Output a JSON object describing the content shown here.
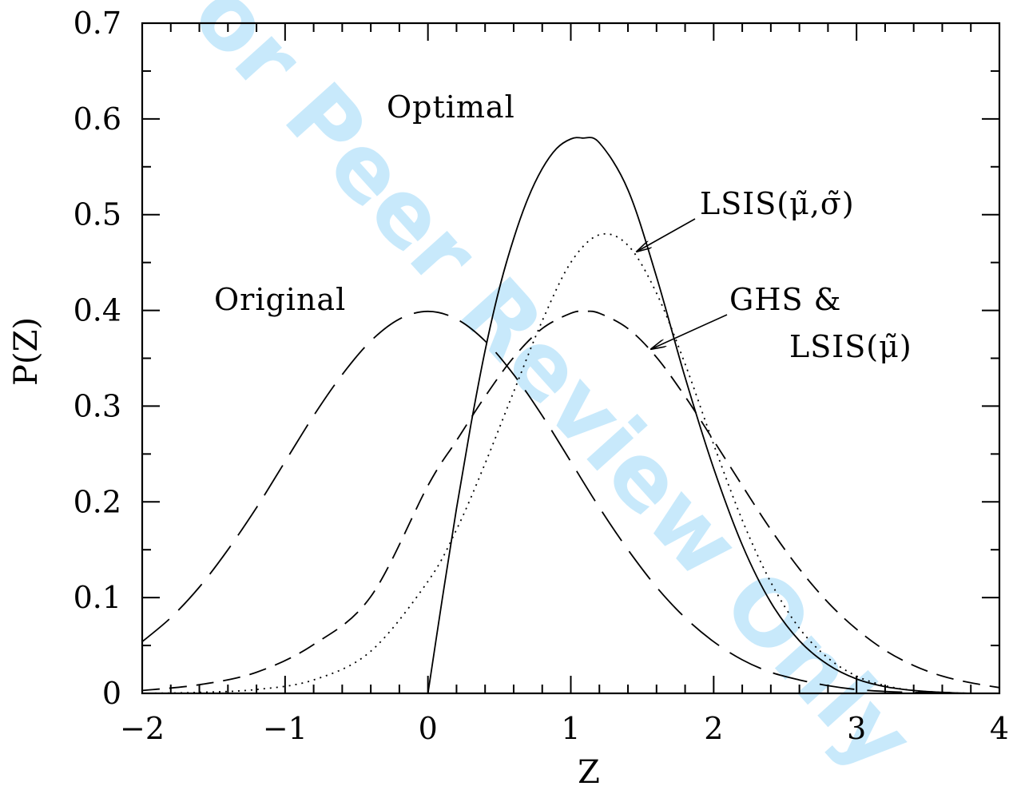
{
  "watermark": "For Peer Review Only",
  "chart_data": {
    "type": "line",
    "xlabel": "Z",
    "ylabel": "P(Z)",
    "xlim": [
      -2,
      4
    ],
    "ylim": [
      0,
      0.7
    ],
    "x_ticks": [
      -2,
      -1,
      0,
      1,
      2,
      3,
      4
    ],
    "x_tick_labels": [
      "−2",
      "−1",
      "0",
      "1",
      "2",
      "3",
      "4"
    ],
    "y_ticks": [
      0,
      0.1,
      0.2,
      0.3,
      0.4,
      0.5,
      0.6,
      0.7
    ],
    "y_tick_labels": [
      "0",
      "0.1",
      "0.2",
      "0.3",
      "0.4",
      "0.5",
      "0.6",
      "0.7"
    ],
    "grid": false,
    "legend": "none",
    "annotations": [
      {
        "text": "Original"
      },
      {
        "text": "Optimal"
      },
      {
        "text": "LSIS(μ̃,σ̃)",
        "arrow_to": [
          1.48,
          0.46
        ]
      },
      {
        "text": "GHS &"
      },
      {
        "text": "LSIS(μ̃)",
        "arrow_to": [
          1.55,
          0.355
        ]
      }
    ],
    "series": [
      {
        "style": "long-dash",
        "x": [
          -2.0,
          -1.8,
          -1.6,
          -1.4,
          -1.2,
          -1.0,
          -0.8,
          -0.6,
          -0.4,
          -0.2,
          0.0,
          0.2,
          0.4,
          0.6,
          0.8,
          1.0,
          1.2,
          1.4,
          1.6,
          1.8,
          2.0,
          2.2,
          2.4,
          2.6,
          2.8,
          3.0,
          3.2,
          3.4,
          3.6,
          3.8,
          4.0
        ],
        "y": [
          0.054,
          0.079,
          0.111,
          0.15,
          0.194,
          0.242,
          0.29,
          0.333,
          0.368,
          0.391,
          0.399,
          0.391,
          0.368,
          0.333,
          0.29,
          0.242,
          0.194,
          0.15,
          0.111,
          0.079,
          0.054,
          0.035,
          0.022,
          0.014,
          0.008,
          0.004,
          0.002,
          0.001,
          0.001,
          0.0,
          0.0
        ]
      },
      {
        "style": "short-dash",
        "x": [
          -2.0,
          -1.6,
          -1.2,
          -0.8,
          -0.4,
          0.0,
          0.2,
          0.4,
          0.6,
          0.8,
          1.0,
          1.1,
          1.2,
          1.4,
          1.6,
          1.8,
          2.0,
          2.2,
          2.4,
          2.6,
          2.8,
          3.0,
          3.2,
          3.4,
          3.6,
          3.8,
          4.0
        ],
        "y": [
          0.003,
          0.009,
          0.022,
          0.051,
          0.101,
          0.217,
          0.264,
          0.31,
          0.351,
          0.381,
          0.397,
          0.399,
          0.397,
          0.381,
          0.351,
          0.31,
          0.264,
          0.217,
          0.171,
          0.13,
          0.095,
          0.067,
          0.045,
          0.029,
          0.018,
          0.011,
          0.006
        ]
      },
      {
        "style": "dotted",
        "x": [
          -2.0,
          -1.6,
          -1.2,
          -0.8,
          -0.4,
          0.0,
          0.2,
          0.4,
          0.6,
          0.8,
          1.0,
          1.2,
          1.4,
          1.6,
          1.8,
          2.0,
          2.2,
          2.4,
          2.6,
          2.8,
          3.0,
          3.2,
          3.4,
          3.6,
          3.8,
          4.0
        ],
        "y": [
          0.0,
          0.001,
          0.004,
          0.014,
          0.044,
          0.117,
          0.171,
          0.24,
          0.315,
          0.389,
          0.45,
          0.479,
          0.468,
          0.418,
          0.344,
          0.26,
          0.181,
          0.116,
          0.068,
          0.037,
          0.018,
          0.008,
          0.003,
          0.001,
          0.0,
          0.0
        ]
      },
      {
        "style": "solid",
        "x": [
          0.0,
          0.1,
          0.2,
          0.3,
          0.4,
          0.5,
          0.6,
          0.7,
          0.8,
          0.9,
          1.0,
          1.08,
          1.2,
          1.4,
          1.6,
          1.8,
          2.0,
          2.2,
          2.4,
          2.6,
          2.8,
          3.0,
          3.2,
          3.4,
          3.6,
          3.8,
          4.0
        ],
        "y": [
          0.0,
          0.098,
          0.193,
          0.28,
          0.358,
          0.423,
          0.475,
          0.517,
          0.548,
          0.569,
          0.579,
          0.58,
          0.575,
          0.526,
          0.435,
          0.33,
          0.235,
          0.155,
          0.095,
          0.055,
          0.03,
          0.015,
          0.007,
          0.003,
          0.001,
          0.0,
          0.0
        ]
      }
    ]
  }
}
